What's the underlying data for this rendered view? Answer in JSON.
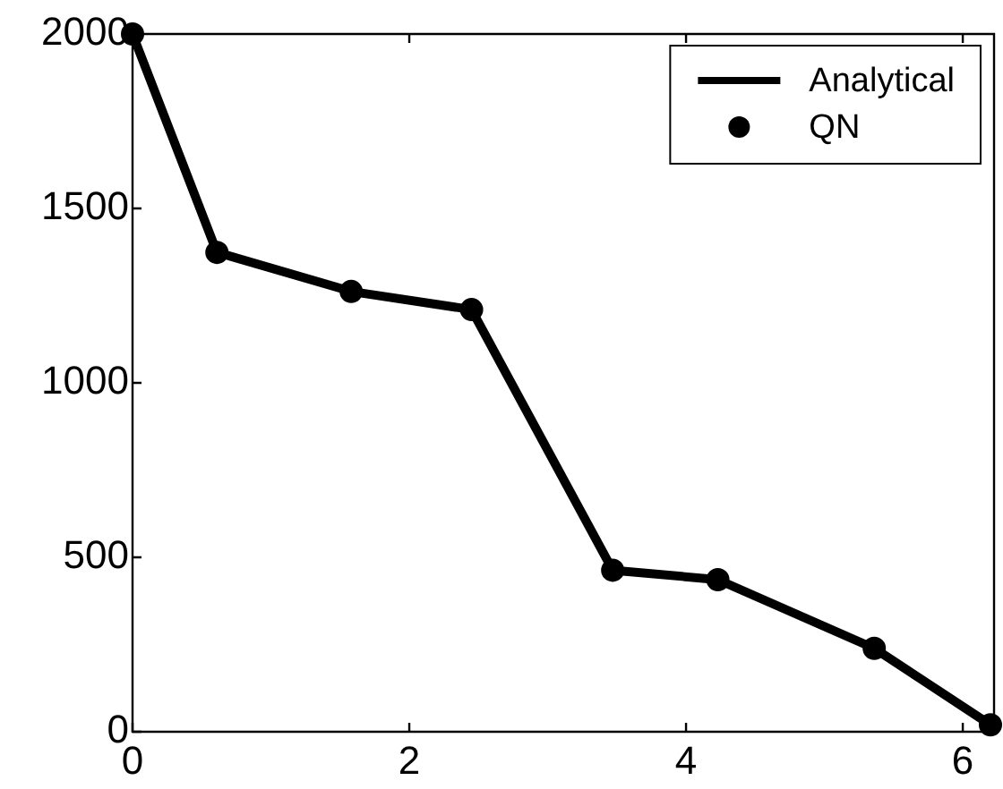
{
  "chart_data": {
    "type": "line",
    "x": [
      0,
      0.61,
      1.58,
      2.45,
      3.47,
      4.23,
      5.36,
      6.2
    ],
    "series": [
      {
        "name": "Analytical",
        "color": "#000000",
        "marker": "none",
        "values": [
          2000,
          1374,
          1262,
          1210,
          463,
          436,
          239,
          20
        ]
      },
      {
        "name": "QN",
        "type": "scatter",
        "color": "#000000",
        "marker": "circle",
        "values": [
          2000,
          1374,
          1262,
          1210,
          463,
          436,
          239,
          20
        ]
      }
    ],
    "xlim": [
      0,
      6.2
    ],
    "xticks": [
      0,
      2,
      4,
      6
    ],
    "ylim": [
      0,
      2000
    ],
    "yticks": [
      0,
      500,
      1000,
      1500,
      2000
    ],
    "grid": false,
    "legend": "top right"
  }
}
